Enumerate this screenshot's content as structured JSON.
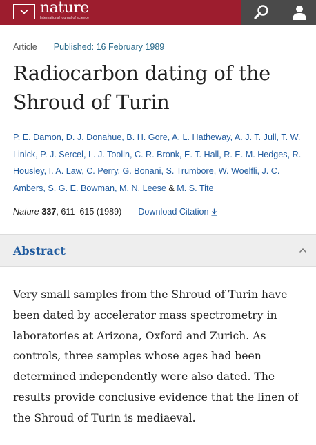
{
  "header": {
    "brand_name": "nature",
    "brand_tagline": "International journal of science",
    "colors": {
      "bar": "#9d1d2e",
      "action_bg": "#4a4a4a"
    },
    "icons": [
      "chevron-down-icon",
      "search-icon",
      "user-icon"
    ]
  },
  "meta": {
    "type": "Article",
    "published": "Published: 16 February 1989"
  },
  "title": "Radiocarbon dating of the Shroud of Turin",
  "authors": [
    "P. E. Damon",
    "D. J. Donahue",
    "B. H. Gore",
    "A. L. Hatheway",
    "A. J. T. Jull",
    "T. W. Linick",
    "P. J. Sercel",
    "L. J. Toolin",
    "C. R. Bronk",
    "E. T. Hall",
    "R. E. M. Hedges",
    "R. Housley",
    "I. A. Law",
    "C. Perry",
    "G. Bonani",
    "S. Trumbore",
    "W. Woelfli",
    "J. C. Ambers",
    "S. G. E. Bowman",
    "M. N. Leese",
    "M. S. Tite"
  ],
  "authors_amp": "&",
  "citation": {
    "journal": "Nature",
    "volume": "337",
    "pages_year": ", 611–615 (1989)",
    "download_label": "Download Citation"
  },
  "abstract": {
    "heading": "Abstract",
    "text": "Very small samples from the Shroud of Turin have been dated by accelerator mass spectrometry in laboratories at Arizona, Oxford and Zurich. As controls, three samples whose ages had been determined independently were also dated. The results provide conclusive evidence that the linen of the Shroud of Turin is mediaeval."
  }
}
